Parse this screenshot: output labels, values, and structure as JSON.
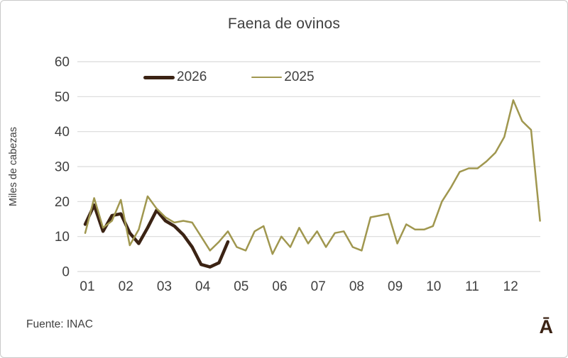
{
  "frame": {
    "title": "Faena de ovinos",
    "source": "Fuente: INAC",
    "watermark": "Ā"
  },
  "axes": {
    "y_label": "Miles de cabezas",
    "y_ticks": [
      0,
      10,
      20,
      30,
      40,
      50,
      60
    ],
    "x_ticks": [
      "01",
      "02",
      "03",
      "04",
      "05",
      "06",
      "07",
      "08",
      "09",
      "10",
      "11",
      "12"
    ]
  },
  "legend": [
    {
      "label": "2026",
      "color": "#3b2314"
    },
    {
      "label": "2025",
      "color": "#a0974f"
    }
  ],
  "colors": {
    "grid": "#d9d9d9",
    "text": "#404040",
    "series_2026": "#3b2314",
    "series_2025": "#a0974f"
  },
  "chart_data": {
    "type": "line",
    "title": "Faena de ovinos",
    "xlabel": "",
    "ylabel": "Miles de cabezas",
    "ylim": [
      0,
      60
    ],
    "grid": "horizontal",
    "legend_position": "top-left-inside",
    "x_unit": "week of year (weekly data, month tick labels 01-12)",
    "x_tick_labels": [
      "01",
      "02",
      "03",
      "04",
      "05",
      "06",
      "07",
      "08",
      "09",
      "10",
      "11",
      "12"
    ],
    "series": [
      {
        "name": "2026",
        "color": "#3b2314",
        "line_width": 4.5,
        "start_week": 1,
        "values": [
          13.5,
          19,
          11.5,
          16,
          16.5,
          11,
          8,
          12.5,
          17.5,
          14.5,
          13,
          10.5,
          7,
          2,
          1.3,
          2.5,
          8.5
        ]
      },
      {
        "name": "2025",
        "color": "#a0974f",
        "line_width": 2.5,
        "start_week": 1,
        "values": [
          11,
          21,
          12.5,
          14.5,
          20.5,
          7.5,
          12,
          21.5,
          18,
          15.5,
          14,
          14.5,
          14,
          10,
          6,
          8.5,
          11.5,
          7,
          6,
          11.5,
          13,
          5,
          10,
          7,
          12.5,
          8,
          11.5,
          7,
          11,
          11.5,
          7,
          6,
          15.5,
          16,
          16.5,
          8,
          13.5,
          12,
          12,
          13,
          20,
          24,
          28.5,
          29.5,
          29.5,
          31.5,
          34,
          38.5,
          49,
          43,
          40.5,
          14.5
        ]
      }
    ]
  }
}
